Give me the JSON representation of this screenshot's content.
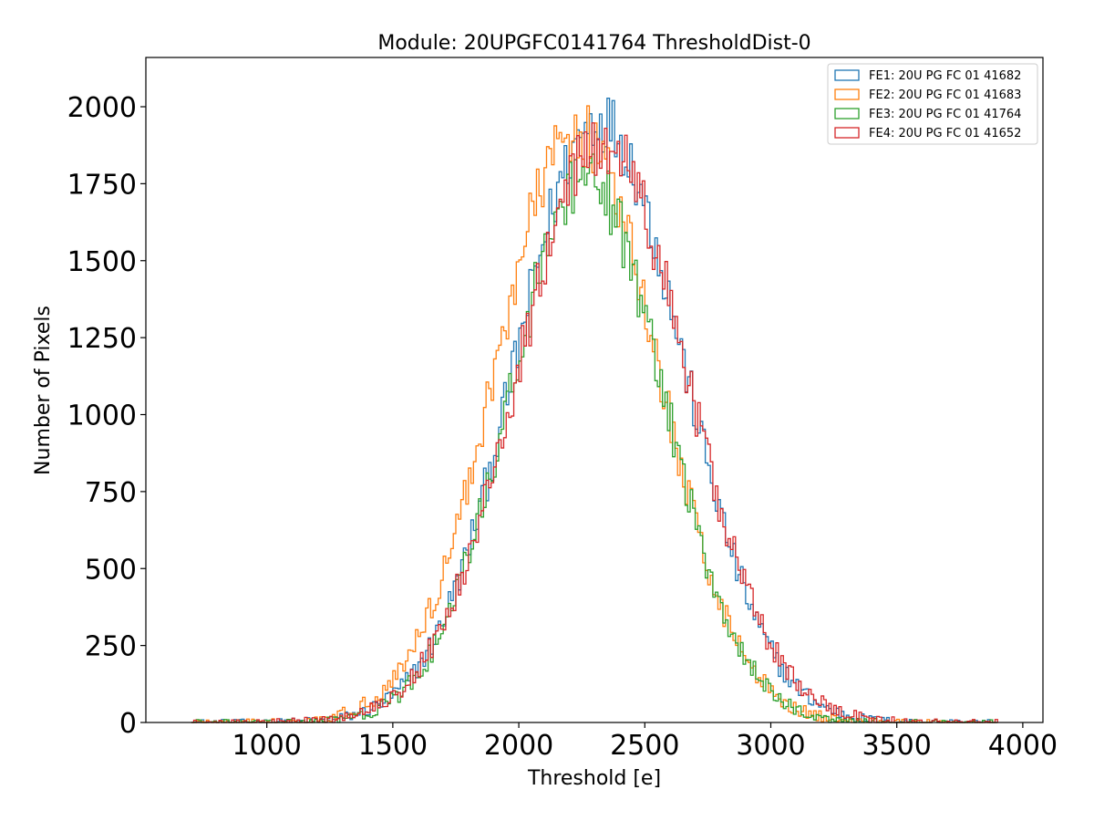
{
  "chart_data": {
    "type": "histogram",
    "title": "Module: 20UPGFC0141764 ThresholdDist-0",
    "xlabel": "Threshold [e]",
    "ylabel": "Number of Pixels",
    "xlim": [
      520,
      4080
    ],
    "ylim": [
      0,
      2160
    ],
    "xticks": [
      1000,
      1500,
      2000,
      2500,
      3000,
      3500,
      4000
    ],
    "xtick_labels": [
      "1000",
      "1500",
      "2000",
      "2500",
      "3000",
      "3500",
      "4000"
    ],
    "yticks": [
      0,
      250,
      500,
      750,
      1000,
      1250,
      1500,
      1750,
      2000
    ],
    "ytick_labels": [
      "0",
      "250",
      "500",
      "750",
      "1000",
      "1250",
      "1500",
      "1750",
      "2000"
    ],
    "legend_position": "top-right",
    "bin_width": 10,
    "series": [
      {
        "name": "FE1: 20U PG FC 01 41682",
        "color": "#1f77b4",
        "mean": 2320,
        "sigma": 330,
        "peak": 1960
      },
      {
        "name": "FE2: 20U PG FC 01 41683",
        "color": "#ff7f0e",
        "mean": 2230,
        "sigma": 320,
        "peak": 1920
      },
      {
        "name": "FE3: 20U PG FC 01 41764",
        "color": "#2ca02c",
        "mean": 2270,
        "sigma": 305,
        "peak": 1760
      },
      {
        "name": "FE4: 20U PG FC 01 41652",
        "color": "#d62728",
        "mean": 2330,
        "sigma": 335,
        "peak": 1880
      }
    ]
  }
}
